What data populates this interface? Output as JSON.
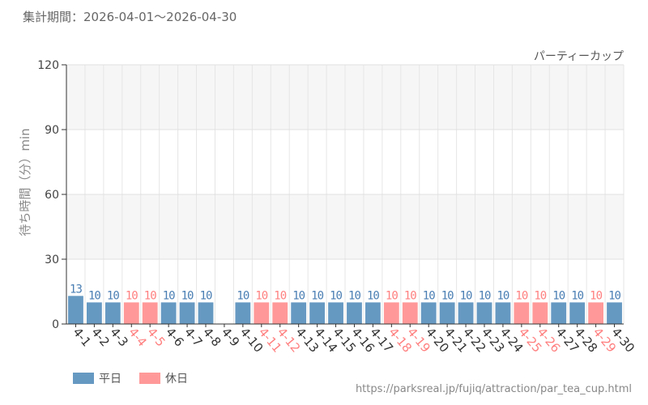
{
  "header": {
    "period_label": "集計期間：2026-04-01～2026-04-30"
  },
  "source_url": "https://parksreal.jp/fujiq/attraction/par_tea_cup.html",
  "colors": {
    "weekday": "#6699c2",
    "holiday": "#ff9999",
    "weekday_text": "#4a7eb3",
    "holiday_text": "#ff7f7f"
  },
  "chart_data": {
    "type": "bar",
    "title": "パーティーカップ",
    "ylabel": "待ち時間（分）min",
    "ylim": [
      0,
      120
    ],
    "yticks": [
      0,
      30,
      60,
      90,
      120
    ],
    "grid": true,
    "legend_position": "bottom-left",
    "legend": [
      {
        "key": "weekday",
        "label": "平日"
      },
      {
        "key": "holiday",
        "label": "休日"
      }
    ],
    "categories": [
      "4-1",
      "4-2",
      "4-3",
      "4-4",
      "4-5",
      "4-6",
      "4-7",
      "4-8",
      "4-9",
      "4-10",
      "4-11",
      "4-12",
      "4-13",
      "4-14",
      "4-15",
      "4-16",
      "4-17",
      "4-18",
      "4-19",
      "4-20",
      "4-21",
      "4-22",
      "4-23",
      "4-24",
      "4-25",
      "4-26",
      "4-27",
      "4-28",
      "4-29",
      "4-30"
    ],
    "values": [
      13,
      10,
      10,
      10,
      10,
      10,
      10,
      10,
      null,
      10,
      10,
      10,
      10,
      10,
      10,
      10,
      10,
      10,
      10,
      10,
      10,
      10,
      10,
      10,
      10,
      10,
      10,
      10,
      10,
      10
    ],
    "day_type": [
      "weekday",
      "weekday",
      "weekday",
      "holiday",
      "holiday",
      "weekday",
      "weekday",
      "weekday",
      "weekday",
      "weekday",
      "holiday",
      "holiday",
      "weekday",
      "weekday",
      "weekday",
      "weekday",
      "weekday",
      "holiday",
      "holiday",
      "weekday",
      "weekday",
      "weekday",
      "weekday",
      "weekday",
      "holiday",
      "holiday",
      "weekday",
      "weekday",
      "holiday",
      "weekday"
    ]
  }
}
